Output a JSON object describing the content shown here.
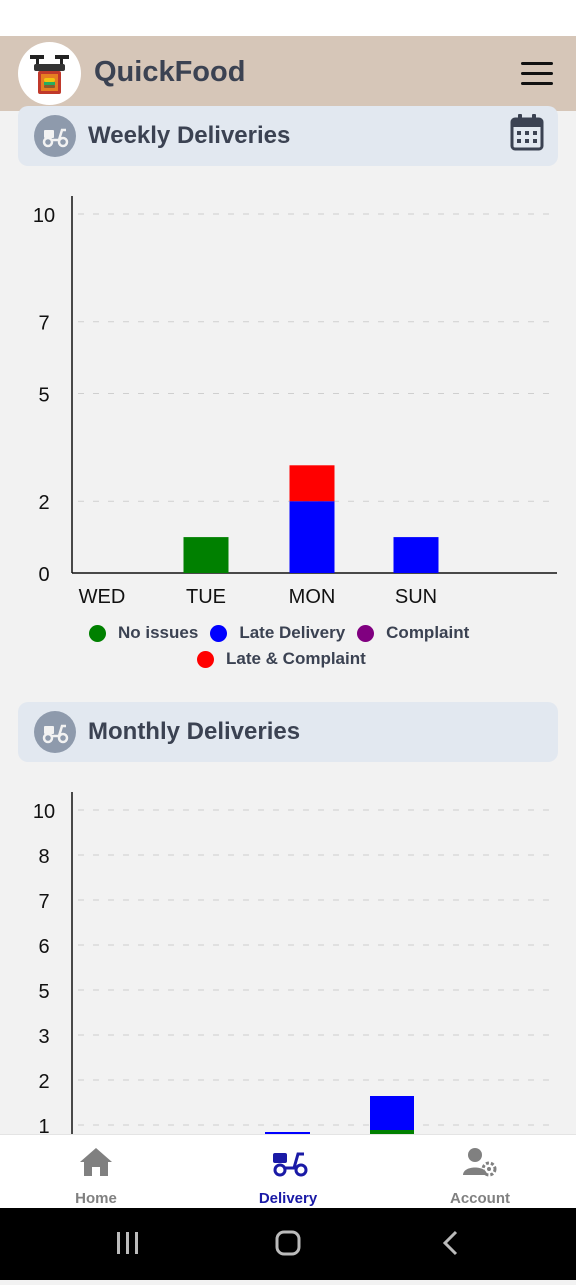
{
  "app": {
    "title": "QuickFood"
  },
  "weekly": {
    "title": "Weekly Deliveries",
    "chart_data": {
      "type": "bar",
      "stacked": true,
      "categories": [
        "WED",
        "TUE",
        "MON",
        "SUN"
      ],
      "y_ticks": [
        0,
        2,
        5,
        7,
        10
      ],
      "ylim": [
        0,
        10
      ],
      "grid": true,
      "legend_position": "bottom",
      "series": [
        {
          "name": "No issues",
          "color": "#008000",
          "values": [
            0,
            1,
            0,
            0
          ]
        },
        {
          "name": "Late Delivery",
          "color": "#0000ff",
          "values": [
            0,
            0,
            2,
            1
          ]
        },
        {
          "name": "Complaint",
          "color": "#800080",
          "values": [
            0,
            0,
            0,
            0
          ]
        },
        {
          "name": "Late & Complaint",
          "color": "#ff0000",
          "values": [
            0,
            0,
            1,
            0
          ]
        }
      ]
    }
  },
  "monthly": {
    "title": "Monthly Deliveries",
    "chart_data": {
      "type": "bar",
      "stacked": true,
      "y_ticks": [
        1,
        2,
        3,
        5,
        6,
        7,
        8,
        10
      ],
      "ylim": [
        0,
        10
      ],
      "grid": true
    }
  },
  "nav": {
    "home": "Home",
    "delivery": "Delivery",
    "account": "Account",
    "active": "delivery",
    "active_color": "#1a1aa6",
    "inactive_color": "#808080"
  }
}
